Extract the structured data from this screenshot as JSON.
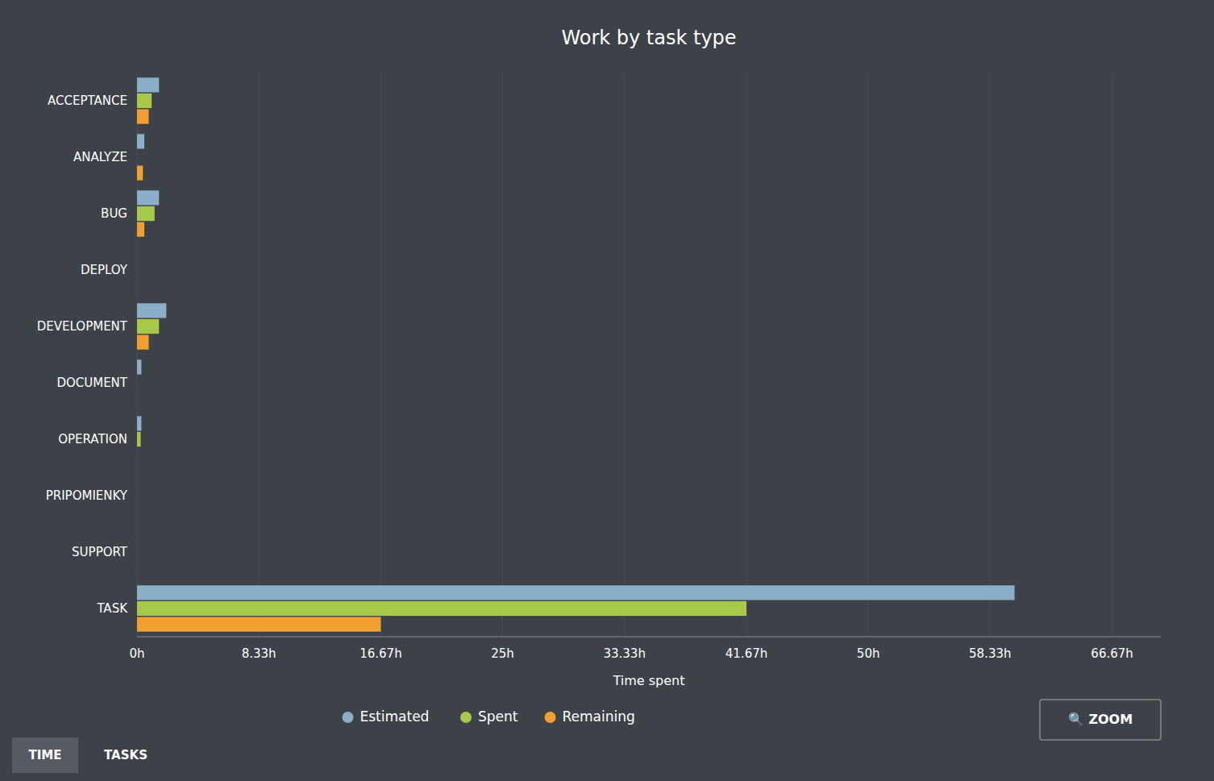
{
  "chart_data": {
    "type": "bar",
    "orientation": "horizontal",
    "title": "Work by task type",
    "x_label": "Time spent",
    "categories": [
      "TASK",
      "SUPPORT",
      "PRIPOMIENKY",
      "OPERATION",
      "DOCUMENT",
      "DEVELOPMENT",
      "DEPLOY",
      "BUG",
      "ANALYZE",
      "ACCEPTANCE"
    ],
    "series": [
      {
        "name": "Estimated",
        "color": "#8bafc8",
        "values": [
          60.0,
          0.0,
          0.0,
          0.3,
          0.3,
          2.0,
          0.0,
          1.5,
          0.5,
          1.5
        ]
      },
      {
        "name": "Spent",
        "color": "#a8c84a",
        "values": [
          41.67,
          0.0,
          0.0,
          0.25,
          0.0,
          1.5,
          0.0,
          1.2,
          0.0,
          1.0
        ]
      },
      {
        "name": "Remaining",
        "color": "#f0a030",
        "values": [
          16.67,
          0.0,
          0.0,
          0.0,
          0.0,
          0.8,
          0.0,
          0.5,
          0.4,
          0.8
        ]
      }
    ],
    "xlim": [
      0,
      70
    ],
    "xticks": [
      {
        "value": 0,
        "label": "0h"
      },
      {
        "value": 8.33,
        "label": "8.33h"
      },
      {
        "value": 16.67,
        "label": "16.67h"
      },
      {
        "value": 25,
        "label": "25h"
      },
      {
        "value": 33.33,
        "label": "33.33h"
      },
      {
        "value": 41.67,
        "label": "41.67h"
      },
      {
        "value": 50,
        "label": "50h"
      },
      {
        "value": 58.33,
        "label": "58.33h"
      },
      {
        "value": 66.67,
        "label": "66.67h"
      }
    ],
    "grid": true,
    "legend": "bottom",
    "annotations": [
      "🔍 ZOOM",
      "TIME",
      "TASKS"
    ]
  }
}
